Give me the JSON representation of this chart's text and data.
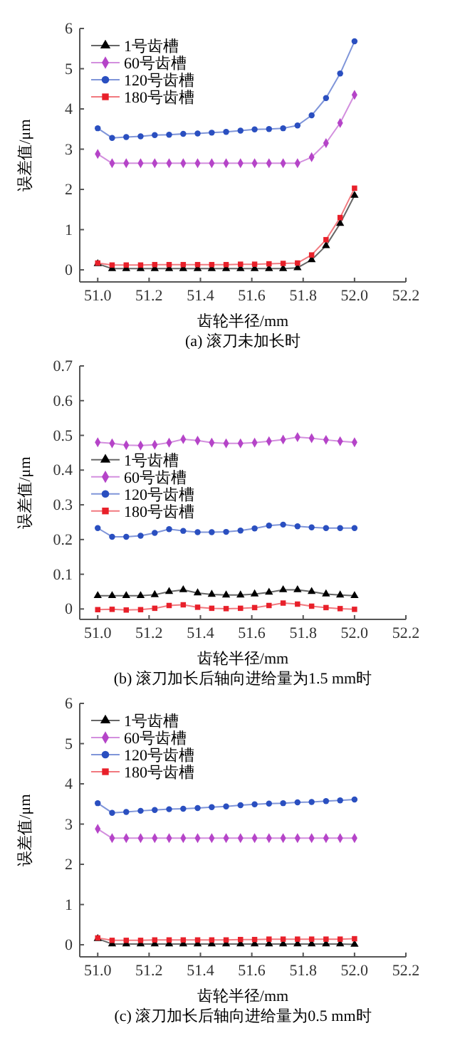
{
  "chart_data": [
    {
      "type": "line",
      "annotations": [
        "(a) 滚刀未加长时"
      ],
      "xlabel": "齿轮半径/mm",
      "ylabel": "误差值/μm",
      "xlim": [
        50.93,
        52.2
      ],
      "xticks": [
        {
          "value": 51,
          "label": "51.0"
        },
        {
          "value": 51.2,
          "label": "51.2"
        },
        {
          "value": 51.4,
          "label": "51.4"
        },
        {
          "value": 51.6,
          "label": "51.6"
        },
        {
          "value": 51.8,
          "label": "51.8"
        },
        {
          "value": 52,
          "label": "52.0"
        },
        {
          "value": 52.2,
          "label": "52.2"
        }
      ],
      "ylim": [
        -0.3,
        6
      ],
      "yticks": [
        0,
        1,
        2,
        3,
        4,
        5,
        6
      ],
      "legend": "top left",
      "grid": false,
      "x": [
        51,
        51.056,
        51.111,
        51.167,
        51.222,
        51.278,
        51.333,
        51.389,
        51.444,
        51.5,
        51.556,
        51.611,
        51.667,
        51.722,
        51.778,
        51.833,
        51.889,
        51.944,
        52
      ],
      "series": [
        {
          "name": "1号齿槽",
          "color": "#000000",
          "marker": "triangle",
          "values": [
            0.15,
            0.03,
            0.03,
            0.03,
            0.03,
            0.03,
            0.03,
            0.03,
            0.03,
            0.03,
            0.03,
            0.03,
            0.03,
            0.03,
            0.05,
            0.25,
            0.6,
            1.15,
            1.85
          ]
        },
        {
          "name": "60号齿槽",
          "color": "#b544c8",
          "marker": "diamond",
          "values": [
            2.88,
            2.65,
            2.65,
            2.65,
            2.65,
            2.65,
            2.65,
            2.65,
            2.65,
            2.65,
            2.65,
            2.65,
            2.65,
            2.65,
            2.65,
            2.8,
            3.15,
            3.65,
            4.35
          ]
        },
        {
          "name": "120号齿槽",
          "color": "#2a4fc0",
          "marker": "circle",
          "values": [
            3.52,
            3.28,
            3.3,
            3.32,
            3.35,
            3.36,
            3.38,
            3.39,
            3.41,
            3.43,
            3.46,
            3.49,
            3.5,
            3.52,
            3.59,
            3.84,
            4.27,
            4.88,
            5.68
          ]
        },
        {
          "name": "180号齿槽",
          "color": "#e8202a",
          "marker": "square",
          "values": [
            0.17,
            0.12,
            0.12,
            0.12,
            0.13,
            0.13,
            0.13,
            0.13,
            0.13,
            0.13,
            0.14,
            0.14,
            0.15,
            0.16,
            0.17,
            0.37,
            0.75,
            1.3,
            2.03
          ]
        }
      ]
    },
    {
      "type": "line",
      "annotations": [
        "(b) 滚刀加长后轴向进给量为1.5 mm时"
      ],
      "xlabel": "齿轮半径/mm",
      "ylabel": "误差值/μm",
      "xlim": [
        50.93,
        52.2
      ],
      "xticks": [
        {
          "value": 51,
          "label": "51.0"
        },
        {
          "value": 51.2,
          "label": "51.2"
        },
        {
          "value": 51.4,
          "label": "51.4"
        },
        {
          "value": 51.6,
          "label": "51.6"
        },
        {
          "value": 51.8,
          "label": "51.8"
        },
        {
          "value": 52,
          "label": "52.0"
        },
        {
          "value": 52.2,
          "label": "52.2"
        }
      ],
      "ylim": [
        -0.03,
        0.7
      ],
      "yticks": [
        0,
        0.1,
        0.2,
        0.3,
        0.4,
        0.5,
        0.6,
        0.7
      ],
      "legend": "left",
      "grid": false,
      "x": [
        51,
        51.056,
        51.111,
        51.167,
        51.222,
        51.278,
        51.333,
        51.389,
        51.444,
        51.5,
        51.556,
        51.611,
        51.667,
        51.722,
        51.778,
        51.833,
        51.889,
        51.944,
        52
      ],
      "series": [
        {
          "name": "1号齿槽",
          "color": "#000000",
          "marker": "triangle",
          "values": [
            0.038,
            0.038,
            0.038,
            0.038,
            0.041,
            0.05,
            0.055,
            0.046,
            0.042,
            0.04,
            0.04,
            0.043,
            0.048,
            0.055,
            0.055,
            0.05,
            0.043,
            0.04,
            0.038
          ]
        },
        {
          "name": "60号齿槽",
          "color": "#b544c8",
          "marker": "diamond",
          "values": [
            0.48,
            0.477,
            0.472,
            0.471,
            0.473,
            0.479,
            0.489,
            0.485,
            0.479,
            0.477,
            0.477,
            0.479,
            0.483,
            0.488,
            0.495,
            0.492,
            0.487,
            0.483,
            0.48
          ]
        },
        {
          "name": "120号齿槽",
          "color": "#2a4fc0",
          "marker": "circle",
          "values": [
            0.233,
            0.208,
            0.208,
            0.211,
            0.219,
            0.23,
            0.225,
            0.221,
            0.221,
            0.222,
            0.226,
            0.232,
            0.24,
            0.243,
            0.238,
            0.235,
            0.233,
            0.233,
            0.233
          ]
        },
        {
          "name": "180号齿槽",
          "color": "#e8202a",
          "marker": "square",
          "values": [
            -0.002,
            -0.001,
            -0.003,
            -0.002,
            0.002,
            0.01,
            0.012,
            0.005,
            0.002,
            0.001,
            0.002,
            0.004,
            0.01,
            0.017,
            0.014,
            0.008,
            0.004,
            0.001,
            -0.001
          ]
        }
      ]
    },
    {
      "type": "line",
      "annotations": [
        "(c) 滚刀加长后轴向进给量为0.5 mm时"
      ],
      "xlabel": "齿轮半径/mm",
      "ylabel": "误差值/μm",
      "xlim": [
        50.93,
        52.2
      ],
      "xticks": [
        {
          "value": 51,
          "label": "51.0"
        },
        {
          "value": 51.2,
          "label": "51.2"
        },
        {
          "value": 51.4,
          "label": "51.4"
        },
        {
          "value": 51.6,
          "label": "51.6"
        },
        {
          "value": 51.8,
          "label": "51.8"
        },
        {
          "value": 52,
          "label": "52.0"
        },
        {
          "value": 52.2,
          "label": "52.2"
        }
      ],
      "ylim": [
        -0.3,
        6
      ],
      "yticks": [
        0,
        1,
        2,
        3,
        4,
        5,
        6
      ],
      "legend": "top left",
      "grid": false,
      "x": [
        51,
        51.056,
        51.111,
        51.167,
        51.222,
        51.278,
        51.333,
        51.389,
        51.444,
        51.5,
        51.556,
        51.611,
        51.667,
        51.722,
        51.778,
        51.833,
        51.889,
        51.944,
        52
      ],
      "series": [
        {
          "name": "1号齿槽",
          "color": "#000000",
          "marker": "triangle",
          "values": [
            0.15,
            0.02,
            0.02,
            0.02,
            0.02,
            0.02,
            0.02,
            0.02,
            0.02,
            0.02,
            0.02,
            0.02,
            0.02,
            0.02,
            0.02,
            0.02,
            0.02,
            0.02,
            0.01
          ]
        },
        {
          "name": "60号齿槽",
          "color": "#b544c8",
          "marker": "diamond",
          "values": [
            2.88,
            2.65,
            2.65,
            2.65,
            2.65,
            2.65,
            2.65,
            2.65,
            2.65,
            2.65,
            2.65,
            2.65,
            2.65,
            2.65,
            2.65,
            2.65,
            2.65,
            2.65,
            2.65
          ]
        },
        {
          "name": "120号齿槽",
          "color": "#2a4fc0",
          "marker": "circle",
          "values": [
            3.52,
            3.28,
            3.3,
            3.33,
            3.35,
            3.37,
            3.38,
            3.4,
            3.42,
            3.44,
            3.47,
            3.49,
            3.51,
            3.52,
            3.54,
            3.55,
            3.57,
            3.59,
            3.61
          ]
        },
        {
          "name": "180号齿槽",
          "color": "#e8202a",
          "marker": "square",
          "values": [
            0.17,
            0.11,
            0.11,
            0.11,
            0.12,
            0.12,
            0.12,
            0.12,
            0.12,
            0.12,
            0.13,
            0.13,
            0.14,
            0.14,
            0.14,
            0.14,
            0.14,
            0.14,
            0.15
          ]
        }
      ]
    }
  ]
}
